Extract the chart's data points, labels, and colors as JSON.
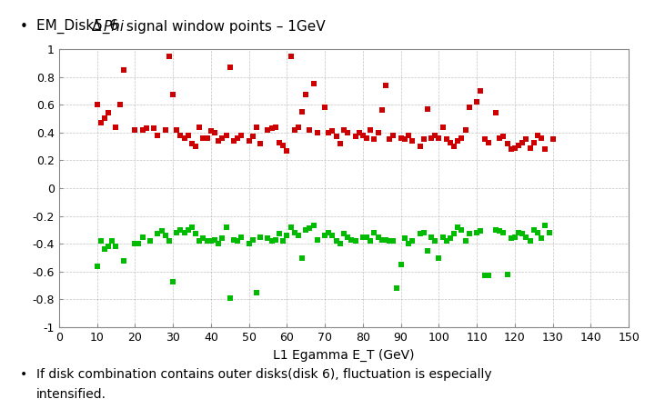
{
  "title_normal1": "EM_Disk5_6 ",
  "title_delta": "Δ",
  "title_italic": "Phi",
  "title_normal2": " signal window points – 1GeV",
  "xlabel": "L1 Egamma E_T (GeV)",
  "xlim": [
    0,
    150
  ],
  "ylim": [
    -1,
    1
  ],
  "xticks": [
    0,
    10,
    20,
    30,
    40,
    50,
    60,
    70,
    80,
    90,
    100,
    110,
    120,
    130,
    140,
    150
  ],
  "yticks": [
    -1,
    -0.8,
    -0.6,
    -0.4,
    -0.2,
    0,
    0.2,
    0.4,
    0.6,
    0.8,
    1
  ],
  "red_x": [
    10,
    11,
    12,
    13,
    15,
    16,
    17,
    20,
    22,
    23,
    25,
    26,
    28,
    29,
    30,
    31,
    32,
    33,
    34,
    35,
    36,
    37,
    38,
    39,
    40,
    41,
    42,
    43,
    44,
    45,
    46,
    47,
    48,
    50,
    51,
    52,
    53,
    55,
    56,
    57,
    58,
    59,
    60,
    61,
    62,
    63,
    64,
    65,
    66,
    67,
    68,
    70,
    71,
    72,
    73,
    74,
    75,
    76,
    78,
    79,
    80,
    81,
    82,
    83,
    84,
    85,
    86,
    87,
    88,
    90,
    91,
    92,
    93,
    95,
    96,
    97,
    98,
    99,
    100,
    101,
    102,
    103,
    104,
    105,
    106,
    107,
    108,
    110,
    111,
    112,
    113,
    115,
    116,
    117,
    118,
    119,
    120,
    121,
    122,
    123,
    124,
    125,
    126,
    127,
    128,
    130
  ],
  "red_y": [
    0.6,
    0.47,
    0.5,
    0.54,
    0.44,
    0.6,
    0.85,
    0.42,
    0.42,
    0.43,
    0.43,
    0.38,
    0.42,
    0.95,
    0.67,
    0.42,
    0.38,
    0.36,
    0.38,
    0.32,
    0.3,
    0.44,
    0.36,
    0.36,
    0.41,
    0.4,
    0.34,
    0.36,
    0.38,
    0.87,
    0.34,
    0.36,
    0.38,
    0.34,
    0.37,
    0.44,
    0.32,
    0.42,
    0.43,
    0.44,
    0.33,
    0.31,
    0.27,
    0.95,
    0.42,
    0.44,
    0.55,
    0.67,
    0.42,
    0.75,
    0.4,
    0.58,
    0.4,
    0.41,
    0.37,
    0.32,
    0.42,
    0.4,
    0.37,
    0.4,
    0.38,
    0.36,
    0.42,
    0.35,
    0.4,
    0.56,
    0.74,
    0.35,
    0.38,
    0.36,
    0.35,
    0.38,
    0.34,
    0.3,
    0.35,
    0.57,
    0.36,
    0.38,
    0.36,
    0.44,
    0.35,
    0.33,
    0.3,
    0.34,
    0.36,
    0.42,
    0.58,
    0.62,
    0.7,
    0.35,
    0.33,
    0.54,
    0.36,
    0.37,
    0.32,
    0.28,
    0.29,
    0.31,
    0.33,
    0.35,
    0.29,
    0.33,
    0.38,
    0.36,
    0.28,
    0.35
  ],
  "green_x": [
    10,
    11,
    12,
    13,
    14,
    15,
    17,
    20,
    21,
    22,
    24,
    26,
    27,
    28,
    29,
    30,
    31,
    32,
    33,
    34,
    35,
    36,
    37,
    38,
    39,
    40,
    41,
    42,
    43,
    44,
    45,
    46,
    47,
    48,
    50,
    51,
    52,
    53,
    55,
    56,
    57,
    58,
    59,
    60,
    61,
    62,
    63,
    64,
    65,
    66,
    67,
    68,
    70,
    71,
    72,
    73,
    74,
    75,
    76,
    77,
    78,
    80,
    81,
    82,
    83,
    84,
    85,
    86,
    87,
    88,
    89,
    90,
    91,
    92,
    93,
    95,
    96,
    97,
    98,
    99,
    100,
    101,
    102,
    103,
    104,
    105,
    106,
    107,
    108,
    110,
    111,
    112,
    113,
    115,
    116,
    117,
    118,
    119,
    120,
    121,
    122,
    123,
    124,
    125,
    126,
    127,
    128,
    129
  ],
  "green_y": [
    -0.56,
    -0.38,
    -0.44,
    -0.42,
    -0.38,
    -0.42,
    -0.52,
    -0.4,
    -0.4,
    -0.35,
    -0.38,
    -0.33,
    -0.31,
    -0.34,
    -0.38,
    -0.67,
    -0.32,
    -0.3,
    -0.32,
    -0.3,
    -0.28,
    -0.33,
    -0.38,
    -0.36,
    -0.38,
    -0.38,
    -0.37,
    -0.4,
    -0.36,
    -0.28,
    -0.79,
    -0.37,
    -0.38,
    -0.35,
    -0.4,
    -0.37,
    -0.75,
    -0.35,
    -0.36,
    -0.38,
    -0.37,
    -0.33,
    -0.38,
    -0.34,
    -0.28,
    -0.32,
    -0.34,
    -0.5,
    -0.3,
    -0.29,
    -0.27,
    -0.37,
    -0.34,
    -0.32,
    -0.34,
    -0.38,
    -0.4,
    -0.33,
    -0.35,
    -0.37,
    -0.38,
    -0.35,
    -0.35,
    -0.38,
    -0.32,
    -0.35,
    -0.37,
    -0.37,
    -0.38,
    -0.38,
    -0.72,
    -0.55,
    -0.36,
    -0.4,
    -0.38,
    -0.33,
    -0.32,
    -0.45,
    -0.35,
    -0.38,
    -0.5,
    -0.35,
    -0.38,
    -0.36,
    -0.33,
    -0.28,
    -0.3,
    -0.38,
    -0.33,
    -0.32,
    -0.31,
    -0.63,
    -0.63,
    -0.3,
    -0.31,
    -0.32,
    -0.62,
    -0.36,
    -0.35,
    -0.32,
    -0.33,
    -0.35,
    -0.38,
    -0.3,
    -0.32,
    -0.36,
    -0.27,
    -0.32
  ],
  "red_color": "#cc0000",
  "green_color": "#00bb00",
  "marker_size": 16,
  "bg_color": "#ffffff",
  "grid_color": "#aaaaaa",
  "footnote_line1": "If disk combination contains outer disks(disk 6), fluctuation is especially",
  "footnote_line2": "intensified.",
  "title_fontsize": 11,
  "xlabel_fontsize": 10,
  "tick_fontsize": 9,
  "footnote_fontsize": 10
}
